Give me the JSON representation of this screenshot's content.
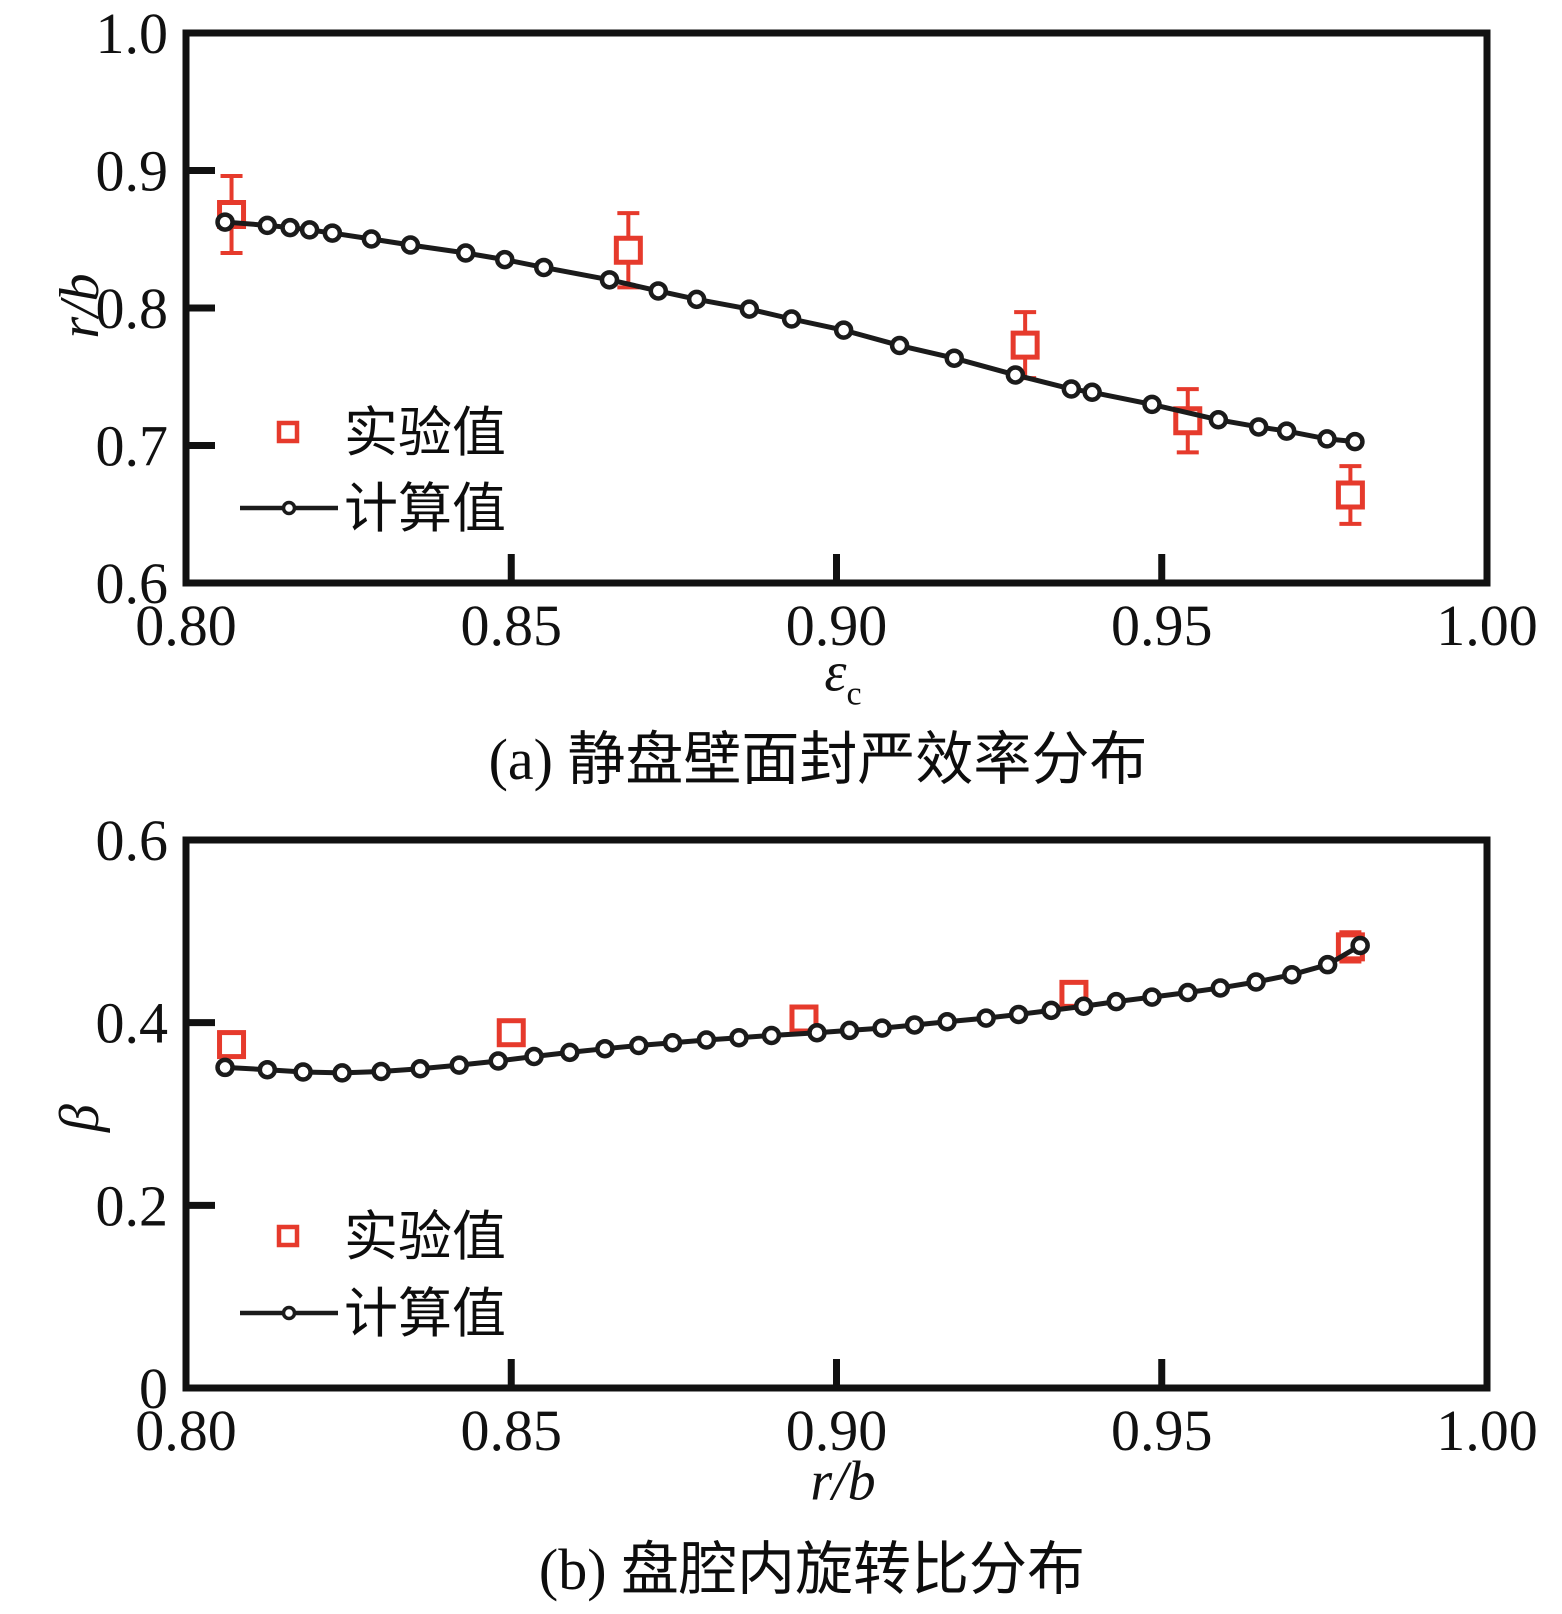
{
  "colors": {
    "experimental_red": "#e63a2c",
    "computed_black": "#1b1b1b",
    "axis_black": "#111111"
  },
  "chart_data": [
    {
      "type": "line",
      "panel": "a",
      "caption": "(a) 静盘壁面封严效率分布",
      "xlabel": "ε",
      "xlabel_sub": "c",
      "ylabel": "r/b",
      "xlim": [
        0.8,
        1.0
      ],
      "ylim": [
        0.6,
        1.0
      ],
      "grid": false,
      "legend_position": "lower-left-inside",
      "xticks": [
        {
          "v": 0.8,
          "label": "0.80"
        },
        {
          "v": 0.85,
          "label": "0.85"
        },
        {
          "v": 0.9,
          "label": "0.90"
        },
        {
          "v": 0.95,
          "label": "0.95"
        },
        {
          "v": 1.0,
          "label": "1.00"
        }
      ],
      "yticks": [
        {
          "v": 1.0,
          "label": "1.0"
        },
        {
          "v": 0.9,
          "label": "0.9"
        },
        {
          "v": 0.8,
          "label": "0.8"
        },
        {
          "v": 0.7,
          "label": "0.7"
        },
        {
          "v": 0.6,
          "label": "0.6"
        }
      ],
      "legend": [
        {
          "label": "实验值",
          "marker": "square"
        },
        {
          "label": "计算值",
          "marker": "line-circle"
        }
      ],
      "series": [
        {
          "name": "实验值",
          "type": "scatter-errorbar",
          "color": "#e63a2c",
          "x": [
            0.807,
            0.868,
            0.929,
            0.954,
            0.979
          ],
          "y": [
            0.868,
            0.842,
            0.773,
            0.718,
            0.664
          ],
          "yerr": [
            0.028,
            0.027,
            0.024,
            0.023,
            0.021
          ]
        },
        {
          "name": "计算值",
          "type": "line-markers",
          "color": "#1b1b1b",
          "x": [
            0.806,
            0.8125,
            0.816,
            0.819,
            0.8225,
            0.8285,
            0.8345,
            0.843,
            0.849,
            0.855,
            0.8651,
            0.8726,
            0.8785,
            0.8866,
            0.8931,
            0.9011,
            0.9097,
            0.9181,
            0.9275,
            0.9361,
            0.9393,
            0.9485,
            0.9587,
            0.9649,
            0.9692,
            0.9754,
            0.9797
          ],
          "y": [
            0.8625,
            0.8601,
            0.8585,
            0.8568,
            0.8545,
            0.8502,
            0.8458,
            0.84,
            0.8352,
            0.8295,
            0.8205,
            0.8124,
            0.8063,
            0.7992,
            0.792,
            0.7839,
            0.7727,
            0.7635,
            0.7513,
            0.7411,
            0.7387,
            0.7299,
            0.7187,
            0.7135,
            0.7105,
            0.7048,
            0.7028
          ]
        }
      ]
    },
    {
      "type": "line",
      "panel": "b",
      "caption": "(b) 盘腔内旋转比分布",
      "xlabel": "r/b",
      "xlabel_sub": "",
      "ylabel": "β",
      "xlim": [
        0.8,
        1.0
      ],
      "ylim": [
        0,
        0.6
      ],
      "grid": false,
      "legend_position": "lower-left-inside",
      "xticks": [
        {
          "v": 0.8,
          "label": "0.80"
        },
        {
          "v": 0.85,
          "label": "0.85"
        },
        {
          "v": 0.9,
          "label": "0.90"
        },
        {
          "v": 0.95,
          "label": "0.95"
        },
        {
          "v": 1.0,
          "label": "1.00"
        }
      ],
      "yticks": [
        {
          "v": 0.6,
          "label": "0.6"
        },
        {
          "v": 0.4,
          "label": "0.4"
        },
        {
          "v": 0.2,
          "label": "0.2"
        },
        {
          "v": 0.0,
          "label": "0"
        }
      ],
      "legend": [
        {
          "label": "实验值",
          "marker": "square"
        },
        {
          "label": "计算值",
          "marker": "line-circle"
        }
      ],
      "series": [
        {
          "name": "实验值",
          "type": "scatter-errorbar",
          "color": "#e63a2c",
          "x": [
            0.807,
            0.85,
            0.895,
            0.9365,
            0.979
          ],
          "y": [
            0.376,
            0.389,
            0.404,
            0.431,
            0.483
          ],
          "yerr": [
            0.013,
            0.011,
            0.012,
            0.012,
            0.016
          ]
        },
        {
          "name": "计算值",
          "type": "line-markers",
          "color": "#1b1b1b",
          "x": [
            0.806,
            0.8125,
            0.818,
            0.824,
            0.83,
            0.836,
            0.842,
            0.848,
            0.8535,
            0.859,
            0.8644,
            0.8696,
            0.8748,
            0.88,
            0.885,
            0.89,
            0.897,
            0.902,
            0.907,
            0.912,
            0.917,
            0.923,
            0.928,
            0.933,
            0.938,
            0.943,
            0.9485,
            0.954,
            0.959,
            0.9645,
            0.97,
            0.9755,
            0.9805
          ],
          "y": [
            0.351,
            0.3485,
            0.346,
            0.345,
            0.3465,
            0.3495,
            0.3535,
            0.358,
            0.363,
            0.3675,
            0.3715,
            0.375,
            0.378,
            0.381,
            0.3835,
            0.386,
            0.389,
            0.3915,
            0.394,
            0.3975,
            0.401,
            0.405,
            0.409,
            0.4135,
            0.418,
            0.423,
            0.428,
            0.433,
            0.438,
            0.4445,
            0.4525,
            0.4635,
            0.4845
          ]
        }
      ]
    }
  ]
}
